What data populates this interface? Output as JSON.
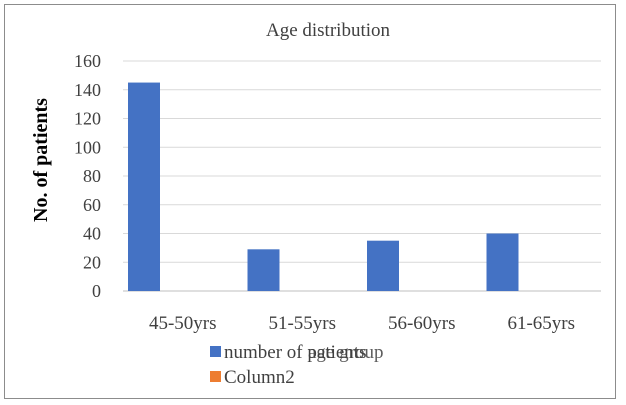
{
  "chart_data": {
    "type": "bar",
    "title": "Age distribution",
    "ylabel": "No. of patients",
    "xlabel": "",
    "categories": [
      "45-50yrs",
      "51-55yrs",
      "56-60yrs",
      "61-65yrs"
    ],
    "series": [
      {
        "name": "number of patients",
        "values": [
          145,
          29,
          35,
          40
        ],
        "color": "#4472c4"
      },
      {
        "name": "Column2",
        "values": [
          0,
          0,
          0,
          0
        ],
        "color": "#ed7d31"
      }
    ],
    "legend_overlap_text": "age group",
    "ylim": [
      0,
      160
    ],
    "yticks": [
      0,
      20,
      40,
      60,
      80,
      100,
      120,
      140,
      160
    ],
    "grid": true,
    "legend_position": "bottom-left"
  }
}
